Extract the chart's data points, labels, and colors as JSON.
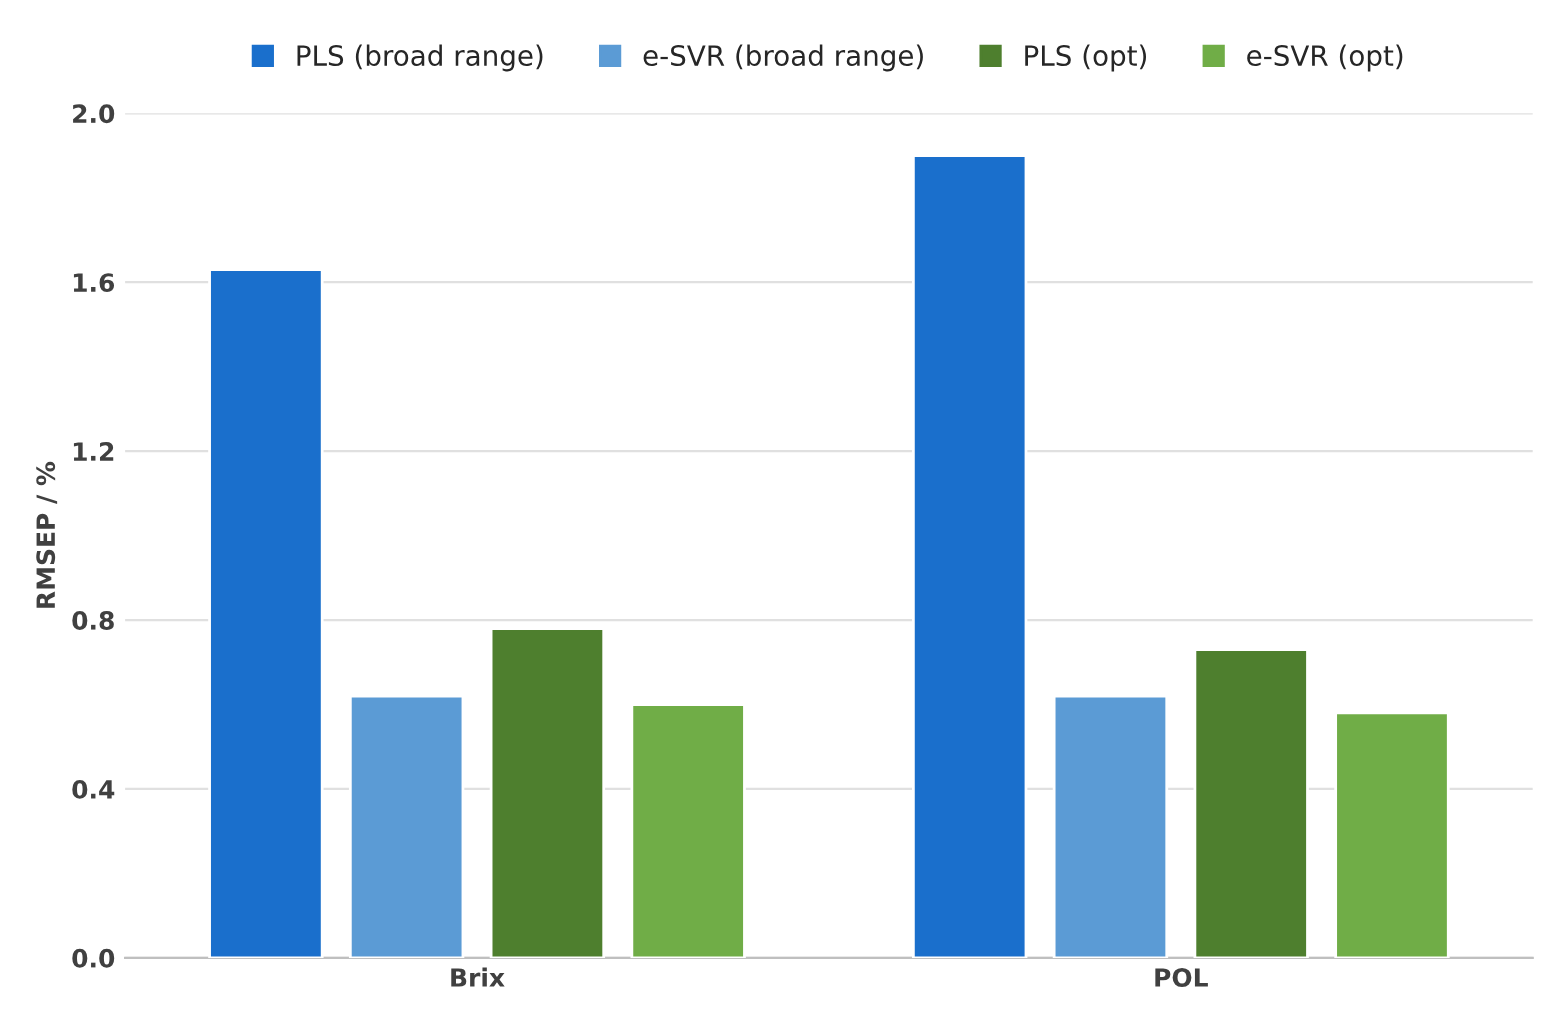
{
  "chart_data": {
    "type": "bar",
    "ylabel": "RMSEP / %",
    "categories": [
      "Brix",
      "POL"
    ],
    "series": [
      {
        "name": "PLS (broad range)",
        "color": "#1a6fcc",
        "values": [
          1.63,
          1.9
        ]
      },
      {
        "name": "e-SVR (broad range)",
        "color": "#5b9bd5",
        "values": [
          0.62,
          0.62
        ]
      },
      {
        "name": "PLS (opt)",
        "color": "#4e7f2e",
        "values": [
          0.78,
          0.73
        ]
      },
      {
        "name": "e-SVR (opt)",
        "color": "#70ad47",
        "values": [
          0.6,
          0.58
        ]
      }
    ],
    "ylim": [
      0,
      2.0
    ],
    "yticks": [
      {
        "value": 0,
        "label": "0.0"
      },
      {
        "value": 0.4,
        "label": "0.4"
      },
      {
        "value": 0.8,
        "label": "0.8"
      },
      {
        "value": 1.2,
        "label": "1.2"
      },
      {
        "value": 1.6,
        "label": "1.6"
      },
      {
        "value": 2.0,
        "label": "2.0"
      }
    ],
    "grid": "y",
    "legend": "top"
  }
}
